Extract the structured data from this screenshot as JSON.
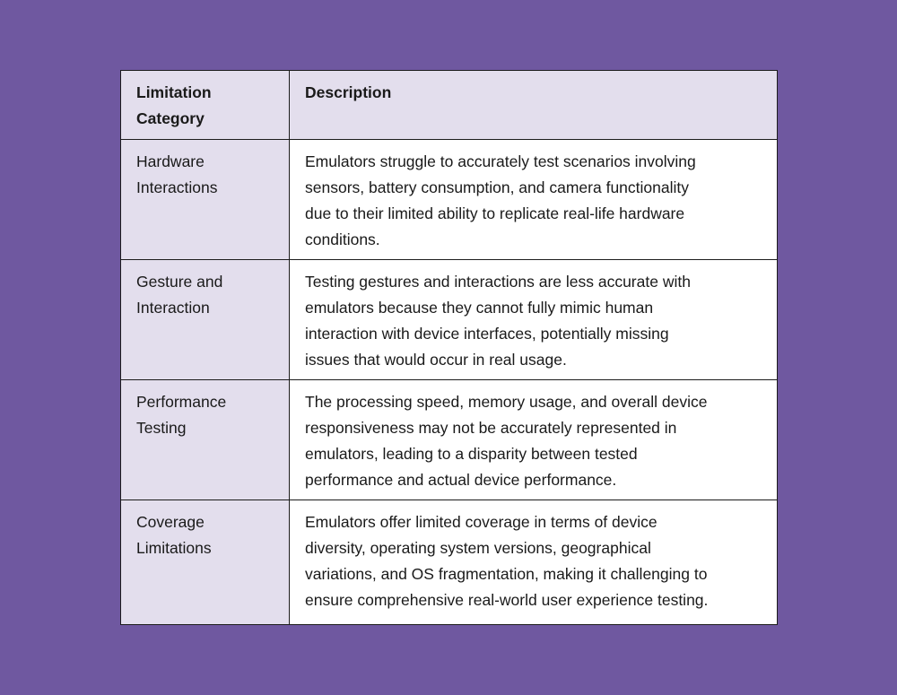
{
  "header": {
    "category_lines": [
      "Limitation",
      "Category"
    ],
    "description": "Description"
  },
  "rows": [
    {
      "category_lines": [
        "Hardware",
        "Interactions"
      ],
      "description_lines": [
        "Emulators struggle to accurately test scenarios involving",
        "sensors, battery consumption, and camera functionality",
        "due to their limited ability to replicate real-life hardware",
        "conditions."
      ]
    },
    {
      "category_lines": [
        "Gesture and",
        "Interaction"
      ],
      "description_lines": [
        "Testing gestures and interactions are less accurate with",
        "emulators because they cannot fully mimic human",
        "interaction with device interfaces, potentially missing",
        "issues that would occur in real usage."
      ]
    },
    {
      "category_lines": [
        "Performance",
        "Testing"
      ],
      "description_lines": [
        "The processing speed, memory usage, and overall device",
        "responsiveness may not be accurately represented in",
        "emulators, leading to a disparity between tested",
        "performance and actual device performance."
      ]
    },
    {
      "category_lines": [
        "Coverage",
        "Limitations"
      ],
      "description_lines": [
        "Emulators offer limited coverage in terms of device",
        "diversity, operating system versions, geographical",
        "variations, and OS fragmentation, making it challenging to",
        "ensure comprehensive real-world user experience testing."
      ]
    }
  ],
  "colors": {
    "background": "#6f58a0",
    "header_fill": "#e3deed",
    "border": "#1c1c1c"
  }
}
